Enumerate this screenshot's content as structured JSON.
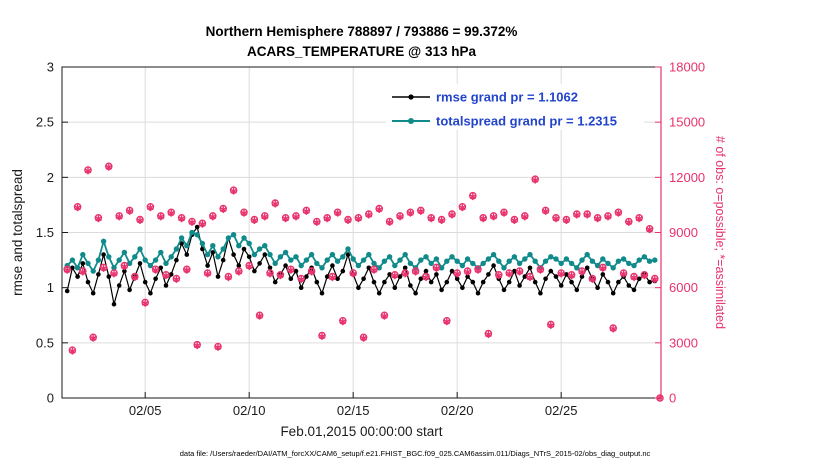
{
  "title_line1": "Northern Hemisphere 788897 / 793886 = 99.372%",
  "title_line2": "ACARS_TEMPERATURE @ 313 hPa",
  "caption": "data file: /Users/raeder/DAI/ATM_forcXX/CAM6_setup/f.e21.FHIST_BGC.f09_025.CAM6assim.011/Diags_NTrS_2015-02/obs_diag_output.nc",
  "colors": {
    "rmse": "#000000",
    "totalspread": "#108a8a",
    "obs": "#e8336d",
    "legend_text": "#2244cc",
    "axis": "#1a1a1a",
    "grid": "#dcdcdc",
    "background": "#ffffff"
  },
  "chart_data": {
    "type": "line",
    "title": "Northern Hemisphere 788897 / 793886 = 99.372% | ACARS_TEMPERATURE @ 313 hPa",
    "xlabel": "Feb.01,2015 00:00:00 start",
    "ylabel_left": "rmse and totalspread",
    "ylabel_right": "# of obs: o=possible; *=assimilated",
    "grid": true,
    "legend_position": "top-center-inside",
    "ylim_left": [
      0,
      3
    ],
    "ylim_right": [
      0,
      18000
    ],
    "yticks_left": [
      0,
      0.5,
      1,
      1.5,
      2,
      2.5,
      3
    ],
    "yticks_right": [
      0,
      3000,
      6000,
      9000,
      12000,
      15000,
      18000
    ],
    "x_range_days": [
      0,
      28.8
    ],
    "xticks": [
      {
        "day": 4,
        "label": "02/05"
      },
      {
        "day": 9,
        "label": "02/10"
      },
      {
        "day": 14,
        "label": "02/15"
      },
      {
        "day": 19,
        "label": "02/20"
      },
      {
        "day": 24,
        "label": "02/25"
      }
    ],
    "t_start": 0.25,
    "t_step": 0.25,
    "series": [
      {
        "name": "rmse grand pr = 1.1062",
        "color_key": "rmse",
        "values": [
          0.97,
          1.18,
          1.1,
          1.22,
          1.05,
          0.95,
          1.12,
          1.3,
          1.1,
          0.85,
          1.02,
          1.15,
          0.98,
          1.1,
          1.22,
          1.05,
          0.95,
          1.08,
          1.18,
          1.02,
          1.12,
          1.25,
          1.4,
          1.3,
          1.48,
          1.55,
          1.35,
          1.2,
          1.32,
          1.1,
          1.25,
          1.45,
          1.3,
          1.2,
          1.35,
          1.28,
          1.15,
          1.22,
          1.3,
          1.18,
          1.05,
          1.12,
          1.2,
          1.08,
          1.15,
          1.0,
          1.1,
          1.18,
          1.05,
          0.95,
          1.1,
          1.2,
          1.08,
          1.15,
          1.3,
          1.12,
          1.0,
          1.08,
          1.18,
          1.05,
          0.95,
          1.05,
          1.12,
          1.0,
          1.1,
          1.18,
          1.02,
          0.95,
          1.08,
          1.15,
          1.05,
          1.12,
          0.98,
          1.05,
          1.15,
          1.08,
          1.0,
          1.1,
          1.05,
          0.95,
          1.05,
          1.12,
          1.2,
          1.08,
          0.98,
          1.05,
          1.15,
          1.02,
          1.1,
          1.18,
          1.05,
          0.95,
          1.08,
          1.15,
          1.1,
          1.02,
          1.12,
          1.05,
          0.98,
          1.1,
          1.18,
          1.08,
          1.0,
          1.12,
          1.05,
          0.95,
          1.05,
          1.1,
          1.02,
          0.98,
          1.08,
          1.12,
          1.05,
          1.06
        ]
      },
      {
        "name": "totalspread grand pr = 1.2315",
        "color_key": "totalspread",
        "values": [
          1.2,
          1.25,
          1.18,
          1.3,
          1.22,
          1.15,
          1.25,
          1.42,
          1.28,
          1.18,
          1.25,
          1.32,
          1.22,
          1.28,
          1.35,
          1.25,
          1.2,
          1.25,
          1.32,
          1.22,
          1.28,
          1.35,
          1.45,
          1.38,
          1.5,
          1.48,
          1.4,
          1.3,
          1.38,
          1.28,
          1.35,
          1.45,
          1.48,
          1.38,
          1.45,
          1.4,
          1.3,
          1.35,
          1.38,
          1.3,
          1.22,
          1.28,
          1.32,
          1.25,
          1.28,
          1.2,
          1.25,
          1.3,
          1.22,
          1.18,
          1.25,
          1.3,
          1.24,
          1.28,
          1.35,
          1.26,
          1.2,
          1.25,
          1.3,
          1.22,
          1.18,
          1.24,
          1.28,
          1.2,
          1.25,
          1.3,
          1.22,
          1.18,
          1.25,
          1.28,
          1.22,
          1.26,
          1.18,
          1.24,
          1.28,
          1.24,
          1.2,
          1.26,
          1.22,
          1.18,
          1.22,
          1.26,
          1.3,
          1.24,
          1.18,
          1.24,
          1.28,
          1.22,
          1.26,
          1.3,
          1.24,
          1.18,
          1.24,
          1.28,
          1.26,
          1.22,
          1.26,
          1.22,
          1.18,
          1.25,
          1.3,
          1.24,
          1.2,
          1.26,
          1.22,
          1.18,
          1.24,
          1.26,
          1.22,
          1.2,
          1.25,
          1.28,
          1.24,
          1.25
        ]
      }
    ],
    "obs": {
      "axis": "right",
      "possible_marker": "o",
      "assimilated_marker": "*",
      "possible": [
        7000,
        2600,
        10400,
        6900,
        12400,
        3300,
        9800,
        7100,
        12600,
        6800,
        9900,
        7200,
        10200,
        6600,
        9700,
        5200,
        10400,
        7000,
        9900,
        6700,
        10100,
        6500,
        9800,
        7000,
        9600,
        2900,
        9500,
        6800,
        9900,
        2800,
        10300,
        6600,
        11300,
        6900,
        10100,
        7200,
        9700,
        4500,
        9900,
        6800,
        10600,
        6700,
        9800,
        7000,
        9900,
        6500,
        10200,
        6900,
        9600,
        3400,
        9800,
        6600,
        10100,
        4200,
        9700,
        6800,
        9800,
        3300,
        10000,
        7000,
        10300,
        4500,
        9600,
        6700,
        9900,
        6800,
        10100,
        6900,
        10200,
        6600,
        9800,
        7100,
        9700,
        4200,
        10000,
        6800,
        10400,
        6900,
        11000,
        7000,
        9800,
        3500,
        9900,
        6700,
        10100,
        6800,
        9700,
        6900,
        9900,
        6600,
        11900,
        7000,
        10200,
        4000,
        9800,
        6800,
        9700,
        6700,
        10000,
        6900,
        10000,
        6500,
        9800,
        7100,
        9900,
        3800,
        10100,
        6800,
        9600,
        6600,
        9800,
        6700,
        9200,
        6500,
        0
      ],
      "assimilated": [
        6950,
        2550,
        10350,
        6850,
        12350,
        3250,
        9750,
        7050,
        12550,
        6750,
        9850,
        7150,
        10150,
        6550,
        9650,
        5150,
        10350,
        6950,
        9850,
        6650,
        10050,
        6450,
        9750,
        6950,
        9550,
        2850,
        9450,
        6750,
        9850,
        2750,
        10250,
        6550,
        11250,
        6850,
        10050,
        7150,
        9650,
        4450,
        9850,
        6750,
        10550,
        6650,
        9750,
        6950,
        9850,
        6450,
        10150,
        6850,
        9550,
        3350,
        9750,
        6550,
        10050,
        4150,
        9650,
        6750,
        9750,
        3250,
        9950,
        6950,
        10250,
        4450,
        9550,
        6650,
        9850,
        6750,
        10050,
        6850,
        10150,
        6550,
        9750,
        7050,
        9650,
        4150,
        9950,
        6750,
        10350,
        6850,
        10950,
        6950,
        9750,
        3450,
        9850,
        6650,
        10050,
        6750,
        9650,
        6850,
        9850,
        6550,
        11850,
        6950,
        10150,
        3950,
        9750,
        6750,
        9650,
        6650,
        9950,
        6850,
        9950,
        6450,
        9750,
        7050,
        9850,
        3750,
        10050,
        6750,
        9550,
        6550,
        9750,
        6650,
        9150,
        6450,
        0
      ]
    }
  }
}
